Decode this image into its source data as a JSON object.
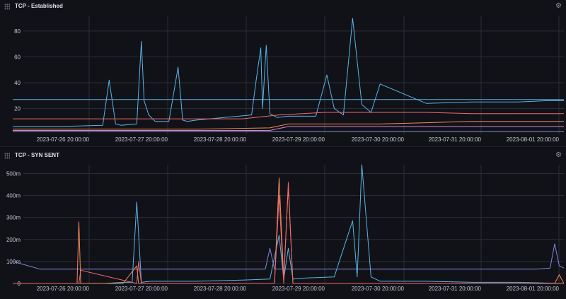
{
  "colors": {
    "background": "#111218",
    "grid": "#2a2d38",
    "axis_text": "#c7c9d1",
    "blue": "#5ab4e6",
    "purple": "#8087e0",
    "red": "#f06a6a",
    "orange": "#f5885a",
    "pink": "#d884c4"
  },
  "icons": {
    "drag": "drag-handle-icon",
    "settings": "gear-icon"
  },
  "panels": [
    {
      "title": "TCP - Established",
      "chart_data": {
        "type": "line",
        "y_ticks": [
          "20",
          "40",
          "60",
          "80"
        ],
        "y_tick_values": [
          20,
          40,
          60,
          80
        ],
        "ylim": [
          0,
          92
        ],
        "x_ticks": [
          "2023-07-26 20:00:00",
          "2023-07-27 20:00:00",
          "2023-07-28 20:00:00",
          "2023-07-29 20:00:00",
          "2023-07-30 20:00:00",
          "2023-07-31 20:00:00",
          "2023-08-01 20:00:00"
        ],
        "xlim": [
          0,
          6.0
        ],
        "grid": true,
        "series": [
          {
            "color": "#5ab4e6",
            "x": [
              0,
              1.0,
              1.0,
              1.5,
              2.0,
              2.4,
              2.5,
              2.8,
              3.25,
              3.5,
              3.5,
              4.0,
              4.5,
              5.0,
              5.5,
              6.0
            ],
            "y": [
              27,
              27,
              27,
              27,
              27,
              27,
              27,
              27,
              27,
              27,
              27,
              27,
              27,
              27,
              27,
              27
            ]
          },
          {
            "color": "#5ab4e6",
            "x": [
              0,
              0.5,
              0.98,
              1.05,
              1.12,
              1.18,
              1.35,
              1.4,
              1.43,
              1.48,
              1.55,
              1.7,
              1.8,
              1.85,
              1.9,
              2.0,
              2.3,
              2.6,
              2.65,
              2.7,
              2.72,
              2.76,
              2.8,
              2.88,
              3.0,
              3.3,
              3.42,
              3.5,
              3.6,
              3.7,
              3.8,
              3.9,
              4.0,
              4.5,
              5.0,
              5.5,
              5.8,
              6.0
            ],
            "y": [
              6,
              6,
              7,
              42,
              8,
              7,
              8,
              72,
              26,
              15,
              10,
              10,
              52,
              11,
              10,
              11,
              13,
              15,
              42,
              67,
              20,
              69,
              16,
              13,
              14,
              14,
              46,
              20,
              15,
              90,
              23,
              17,
              39,
              24,
              25,
              25,
              26,
              26
            ]
          },
          {
            "color": "#f06a6a",
            "x": [
              0,
              1.0,
              1.6,
              2.0,
              2.5,
              2.9,
              3.4,
              3.9,
              4.5,
              5.0,
              5.5,
              6.0
            ],
            "y": [
              12,
              12,
              12,
              12,
              12,
              15,
              17,
              17,
              17,
              16,
              16,
              16
            ]
          },
          {
            "color": "#f5885a",
            "x": [
              0,
              1.0,
              1.5,
              2.0,
              2.8,
              3.0,
              3.5,
              4.0,
              4.5,
              5.0,
              5.5,
              6.0
            ],
            "y": [
              4,
              4,
              4,
              4,
              5,
              8,
              8,
              8,
              9,
              10,
              10,
              10
            ]
          },
          {
            "color": "#d884c4",
            "x": [
              0,
              1.0,
              1.5,
              2.0,
              2.8,
              3.0,
              3.5,
              4.0,
              5.0,
              6.0
            ],
            "y": [
              3,
              3,
              3,
              3,
              3,
              6,
              6,
              6,
              6,
              6
            ]
          },
          {
            "color": "#8087e0",
            "x": [
              0,
              1.0,
              2.0,
              3.0,
              4.0,
              5.0,
              6.0
            ],
            "y": [
              2,
              2,
              2,
              2,
              2,
              2,
              2
            ]
          }
        ]
      }
    },
    {
      "title": "TCP - SYN SENT",
      "chart_data": {
        "type": "line",
        "y_ticks": [
          "0",
          "100m",
          "200m",
          "300m",
          "400m",
          "500m"
        ],
        "y_tick_values": [
          0,
          100,
          200,
          300,
          400,
          500
        ],
        "ylim": [
          0,
          540
        ],
        "x_ticks": [
          "2023-07-26 20:00:00",
          "2023-07-27 20:00:00",
          "2023-07-28 20:00:00",
          "2023-07-29 20:00:00",
          "2023-07-30 20:00:00",
          "2023-07-31 20:00:00",
          "2023-08-01 20:00:00"
        ],
        "xlim": [
          0,
          6.0
        ],
        "grid": true,
        "series": [
          {
            "color": "#8087e0",
            "x": [
              0,
              0.3,
              0.6,
              0.9,
              1.2,
              1.5,
              1.8,
              2.1,
              2.4,
              2.75,
              2.8,
              2.85,
              3.0,
              3.3,
              3.6,
              3.9,
              4.2,
              4.5,
              4.8,
              5.1,
              5.4,
              5.7,
              5.85,
              5.9,
              5.95,
              6.0
            ],
            "y": [
              100,
              65,
              65,
              65,
              65,
              65,
              65,
              65,
              65,
              65,
              160,
              65,
              65,
              65,
              65,
              65,
              65,
              65,
              65,
              65,
              65,
              65,
              70,
              180,
              80,
              70
            ]
          },
          {
            "color": "#5ab4e6",
            "x": [
              0,
              0.5,
              1.0,
              1.2,
              1.3,
              1.35,
              1.4,
              1.5,
              2.0,
              2.5,
              2.8,
              2.9,
              2.95,
              3.0,
              3.05,
              3.2,
              3.5,
              3.7,
              3.75,
              3.8,
              3.9,
              4.0,
              4.5,
              5.0,
              5.5,
              6.0
            ],
            "y": [
              0,
              0,
              0,
              5,
              5,
              370,
              5,
              10,
              10,
              15,
              20,
              220,
              20,
              160,
              20,
              25,
              30,
              285,
              30,
              540,
              30,
              10,
              10,
              5,
              5,
              0
            ]
          },
          {
            "color": "#f5885a",
            "x": [
              0,
              0.3,
              0.7,
              0.72,
              0.74,
              0.78,
              1.2,
              1.35,
              1.37,
              1.4,
              1.5,
              2.0,
              2.5,
              2.85,
              2.9,
              2.95,
              3.0,
              3.05,
              3.1,
              3.5,
              4.0,
              4.5,
              5.0,
              5.5,
              5.9,
              5.95,
              6.0
            ],
            "y": [
              0,
              0,
              0,
              280,
              0,
              0,
              0,
              80,
              0,
              0,
              0,
              0,
              0,
              0,
              480,
              20,
              440,
              0,
              0,
              0,
              0,
              0,
              0,
              0,
              0,
              40,
              0
            ]
          },
          {
            "color": "#f06a6a",
            "x": [
              0,
              0.3,
              0.72,
              0.74,
              1.35,
              1.37,
              1.4,
              2.0,
              2.85,
              2.9,
              2.95,
              3.0,
              3.05,
              3.5,
              4.0,
              5.0,
              6.0
            ],
            "y": [
              0,
              0,
              0,
              60,
              0,
              100,
              0,
              0,
              0,
              400,
              0,
              460,
              0,
              0,
              0,
              0,
              0
            ]
          }
        ]
      }
    }
  ]
}
